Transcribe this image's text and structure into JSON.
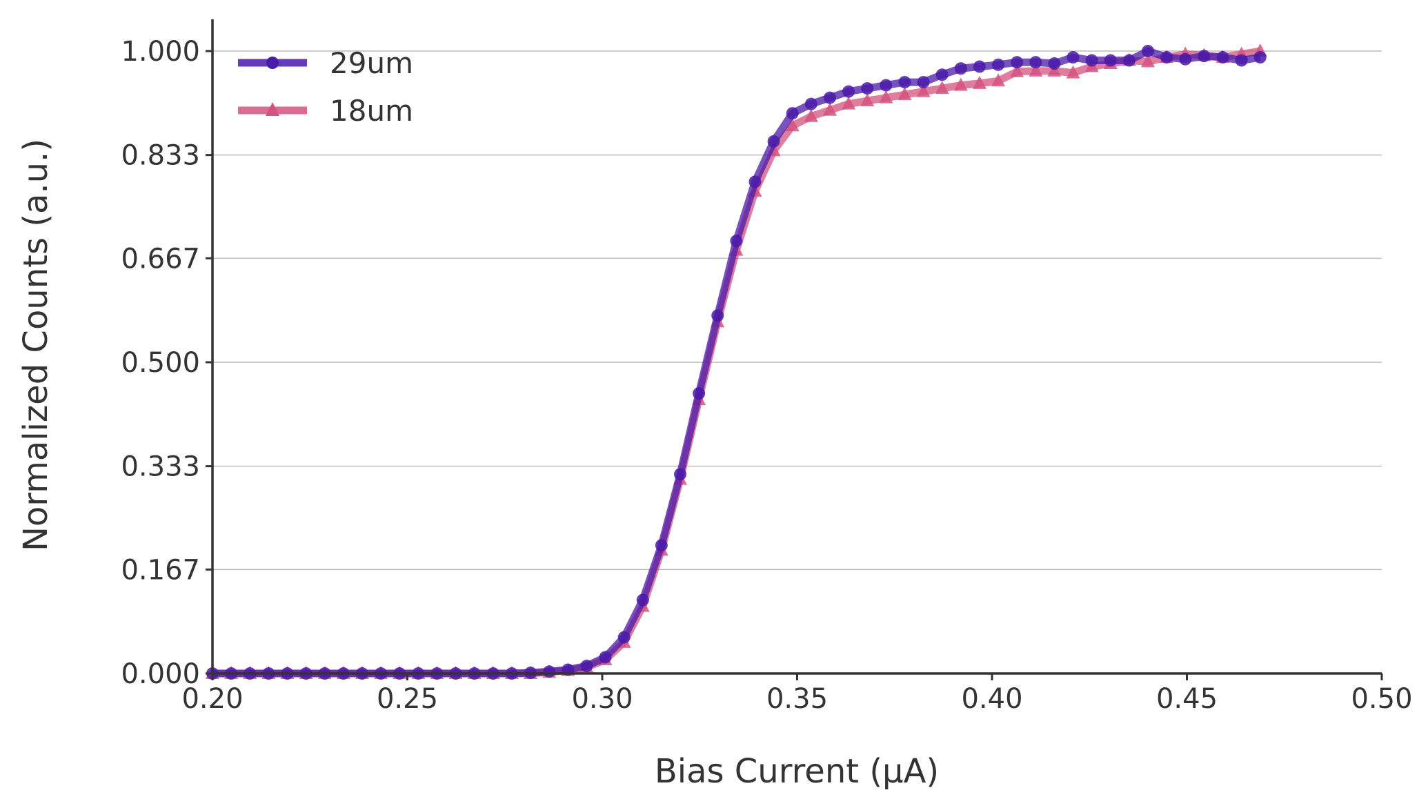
{
  "chart_data": {
    "type": "line",
    "xlabel": "Bias Current (μA)",
    "ylabel": "Normalized Counts (a.u.)",
    "xlim": [
      0.2,
      0.5
    ],
    "ylim": [
      0.0,
      1.0
    ],
    "xticks": [
      0.2,
      0.25,
      0.3,
      0.35,
      0.4,
      0.45,
      0.5
    ],
    "xtick_labels": [
      "0.20",
      "0.25",
      "0.30",
      "0.35",
      "0.40",
      "0.45",
      "0.50"
    ],
    "yticks": [
      0.0,
      0.167,
      0.333,
      0.5,
      0.667,
      0.833,
      1.0
    ],
    "ytick_labels": [
      "0.000",
      "0.167",
      "0.333",
      "0.500",
      "0.667",
      "0.833",
      "1.000"
    ],
    "grid": "horizontal",
    "legend_position": "top-left",
    "x": [
      0.2,
      0.2048,
      0.2096,
      0.2144,
      0.2192,
      0.224,
      0.2288,
      0.2336,
      0.2384,
      0.2432,
      0.248,
      0.2528,
      0.2576,
      0.2624,
      0.2672,
      0.272,
      0.2768,
      0.2816,
      0.2864,
      0.2912,
      0.296,
      0.3008,
      0.3056,
      0.3104,
      0.3152,
      0.32,
      0.3248,
      0.3296,
      0.3344,
      0.3392,
      0.344,
      0.3488,
      0.3536,
      0.3584,
      0.3632,
      0.368,
      0.3728,
      0.3776,
      0.3824,
      0.3872,
      0.392,
      0.3968,
      0.4016,
      0.4064,
      0.4112,
      0.416,
      0.4208,
      0.4256,
      0.4304,
      0.4352,
      0.44,
      0.4448,
      0.4496,
      0.4544,
      0.4592,
      0.464,
      0.4688
    ],
    "series": [
      {
        "name": "29um",
        "color": "#4a1aa8",
        "marker": "circle",
        "values": [
          0.0,
          0.0,
          0.0,
          0.0,
          0.0,
          0.0,
          0.0,
          0.0,
          0.0,
          0.0,
          0.0,
          0.0,
          0.0,
          0.0,
          0.0,
          0.0,
          0.0,
          0.001,
          0.003,
          0.006,
          0.012,
          0.026,
          0.058,
          0.118,
          0.206,
          0.32,
          0.45,
          0.575,
          0.695,
          0.79,
          0.855,
          0.9,
          0.915,
          0.925,
          0.935,
          0.94,
          0.945,
          0.95,
          0.95,
          0.962,
          0.972,
          0.975,
          0.978,
          0.982,
          0.982,
          0.98,
          0.99,
          0.985,
          0.985,
          0.985,
          1.0,
          0.99,
          0.987,
          0.992,
          0.99,
          0.985,
          0.99
        ]
      },
      {
        "name": "18um",
        "color": "#d4527f",
        "marker": "triangle",
        "values": [
          0.0,
          0.0,
          0.0,
          0.0,
          0.0,
          0.0,
          0.0,
          0.0,
          0.0,
          0.0,
          0.0,
          0.0,
          0.0,
          0.0,
          0.0,
          0.0,
          0.0,
          0.0,
          0.002,
          0.005,
          0.01,
          0.022,
          0.05,
          0.108,
          0.198,
          0.312,
          0.44,
          0.565,
          0.68,
          0.775,
          0.84,
          0.88,
          0.895,
          0.905,
          0.915,
          0.92,
          0.925,
          0.93,
          0.935,
          0.94,
          0.945,
          0.948,
          0.952,
          0.967,
          0.968,
          0.968,
          0.965,
          0.975,
          0.98,
          0.985,
          0.983,
          0.99,
          0.995,
          0.993,
          0.99,
          0.995,
          1.0
        ]
      }
    ]
  }
}
